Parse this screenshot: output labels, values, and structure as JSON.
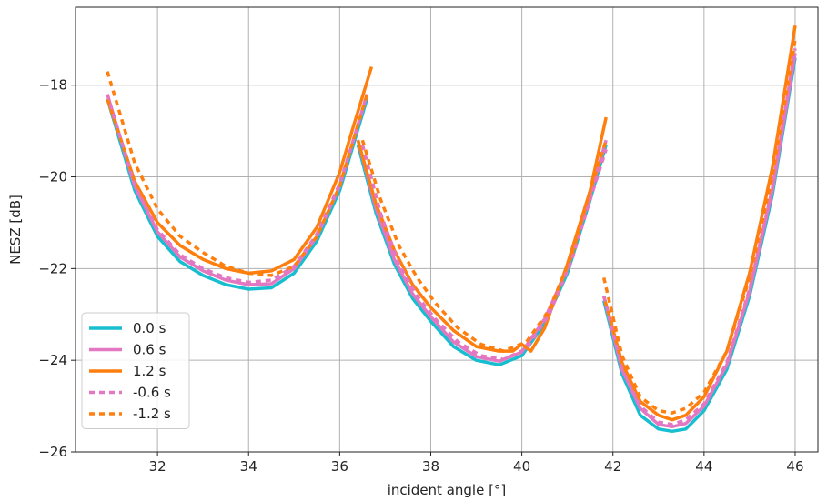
{
  "chart_data": {
    "type": "line",
    "title": "",
    "xlabel": "incident angle [°]",
    "ylabel": "NESZ [dB]",
    "xlim": [
      30.2,
      46.5
    ],
    "ylim": [
      -26.0,
      -16.3
    ],
    "xticks": [
      32,
      34,
      36,
      38,
      40,
      42,
      44,
      46
    ],
    "yticks": [
      -26,
      -24,
      -22,
      -20,
      -18
    ],
    "x_tick_labels": [
      "32",
      "34",
      "36",
      "38",
      "40",
      "42",
      "44",
      "46"
    ],
    "y_tick_labels": [
      "−26",
      "−24",
      "−22",
      "−20",
      "−18"
    ],
    "grid": true,
    "legend_position": "lower-left",
    "series": [
      {
        "name": "0.0 s",
        "color": "#17becf",
        "style": "solid",
        "segments": [
          {
            "x": [
              30.9,
              31.5,
              32.0,
              32.5,
              33.0,
              33.5,
              34.0,
              34.5,
              35.0,
              35.5,
              36.0,
              36.3,
              36.6
            ],
            "y": [
              -18.3,
              -20.3,
              -21.3,
              -21.85,
              -22.15,
              -22.35,
              -22.45,
              -22.42,
              -22.1,
              -21.4,
              -20.3,
              -19.3,
              -18.3
            ]
          },
          {
            "x": [
              36.4,
              36.8,
              37.2,
              37.6,
              38.0,
              38.5,
              39.0,
              39.5,
              40.0,
              40.5,
              41.0,
              41.5,
              41.85
            ],
            "y": [
              -19.3,
              -20.8,
              -21.9,
              -22.65,
              -23.15,
              -23.7,
              -24.0,
              -24.1,
              -23.9,
              -23.2,
              -22.1,
              -20.5,
              -19.3
            ]
          },
          {
            "x": [
              41.8,
              42.2,
              42.6,
              43.0,
              43.3,
              43.6,
              44.0,
              44.5,
              45.0,
              45.5,
              46.0
            ],
            "y": [
              -22.7,
              -24.3,
              -25.2,
              -25.5,
              -25.55,
              -25.5,
              -25.1,
              -24.2,
              -22.6,
              -20.4,
              -17.4
            ]
          }
        ]
      },
      {
        "name": "0.6 s",
        "color": "#e377c2",
        "style": "solid",
        "segments": [
          {
            "x": [
              30.9,
              31.5,
              32.0,
              32.5,
              33.0,
              33.5,
              34.0,
              34.5,
              35.0,
              35.5,
              36.0,
              36.3,
              36.6
            ],
            "y": [
              -18.2,
              -20.2,
              -21.2,
              -21.75,
              -22.05,
              -22.25,
              -22.35,
              -22.33,
              -22.0,
              -21.3,
              -20.2,
              -19.2,
              -18.2
            ]
          },
          {
            "x": [
              36.4,
              36.8,
              37.2,
              37.6,
              38.0,
              38.5,
              39.0,
              39.5,
              40.0,
              40.5,
              41.0,
              41.5,
              41.85
            ],
            "y": [
              -19.2,
              -20.7,
              -21.8,
              -22.55,
              -23.05,
              -23.6,
              -23.92,
              -24.02,
              -23.82,
              -23.1,
              -22.0,
              -20.4,
              -19.2
            ]
          },
          {
            "x": [
              41.8,
              42.2,
              42.6,
              43.0,
              43.3,
              43.6,
              44.0,
              44.5,
              45.0,
              45.5,
              46.0
            ],
            "y": [
              -22.6,
              -24.2,
              -25.05,
              -25.4,
              -25.45,
              -25.38,
              -25.0,
              -24.1,
              -22.5,
              -20.3,
              -17.3
            ]
          }
        ]
      },
      {
        "name": "1.2 s",
        "color": "#ff7f0e",
        "style": "solid",
        "segments": [
          {
            "x": [
              30.9,
              31.5,
              32.0,
              32.5,
              33.0,
              33.5,
              34.0,
              34.5,
              35.0,
              35.5,
              36.0,
              36.3,
              36.7
            ],
            "y": [
              -18.3,
              -20.1,
              -21.0,
              -21.5,
              -21.8,
              -22.0,
              -22.1,
              -22.05,
              -21.8,
              -21.1,
              -19.9,
              -18.9,
              -17.6
            ]
          },
          {
            "x": [
              36.4,
              36.8,
              37.2,
              37.6,
              38.0,
              38.5,
              39.0,
              39.5,
              39.8,
              40.0,
              40.2,
              40.5,
              41.0,
              41.5,
              41.85
            ],
            "y": [
              -19.2,
              -20.6,
              -21.6,
              -22.35,
              -22.85,
              -23.35,
              -23.7,
              -23.8,
              -23.8,
              -23.65,
              -23.8,
              -23.3,
              -21.9,
              -20.3,
              -18.7
            ]
          },
          {
            "x": [
              41.8,
              42.2,
              42.6,
              43.0,
              43.3,
              43.6,
              44.0,
              44.5,
              45.0,
              45.5,
              46.0
            ],
            "y": [
              -22.6,
              -24.05,
              -24.9,
              -25.2,
              -25.3,
              -25.2,
              -24.8,
              -23.8,
              -22.1,
              -19.8,
              -16.7
            ]
          }
        ]
      },
      {
        "name": "-0.6 s",
        "color": "#e377c2",
        "style": "dashed",
        "segments": [
          {
            "x": [
              30.9,
              31.5,
              32.0,
              32.5,
              33.0,
              33.5,
              34.0,
              34.5,
              35.0,
              35.5,
              36.0,
              36.3,
              36.6
            ],
            "y": [
              -18.2,
              -20.2,
              -21.15,
              -21.7,
              -22.0,
              -22.2,
              -22.3,
              -22.25,
              -21.95,
              -21.25,
              -20.15,
              -19.2,
              -18.2
            ]
          },
          {
            "x": [
              36.5,
              36.9,
              37.3,
              37.7,
              38.1,
              38.6,
              39.1,
              39.6,
              40.1,
              40.6,
              41.1,
              41.5,
              41.85
            ],
            "y": [
              -19.3,
              -20.8,
              -21.9,
              -22.6,
              -23.1,
              -23.6,
              -23.9,
              -23.98,
              -23.75,
              -23.0,
              -21.8,
              -20.5,
              -19.4
            ]
          },
          {
            "x": [
              41.8,
              42.2,
              42.6,
              43.0,
              43.3,
              43.6,
              44.0,
              44.5,
              45.0,
              45.5,
              46.0
            ],
            "y": [
              -22.6,
              -24.2,
              -25.0,
              -25.35,
              -25.4,
              -25.3,
              -24.95,
              -24.05,
              -22.45,
              -20.25,
              -17.2
            ]
          }
        ]
      },
      {
        "name": "-1.2 s",
        "color": "#ff7f0e",
        "style": "dashed",
        "segments": [
          {
            "x": [
              30.9,
              31.5,
              32.0,
              32.5,
              33.0,
              33.5,
              34.0,
              34.5,
              35.0,
              35.5,
              36.0,
              36.3,
              36.6
            ],
            "y": [
              -17.7,
              -19.7,
              -20.7,
              -21.3,
              -21.65,
              -21.95,
              -22.1,
              -22.15,
              -21.95,
              -21.3,
              -20.2,
              -19.2,
              -18.2
            ]
          },
          {
            "x": [
              36.5,
              36.9,
              37.3,
              37.7,
              38.1,
              38.6,
              39.1,
              39.6,
              40.1,
              40.6,
              41.1,
              41.5,
              41.85
            ],
            "y": [
              -19.2,
              -20.5,
              -21.5,
              -22.2,
              -22.75,
              -23.3,
              -23.65,
              -23.8,
              -23.6,
              -22.9,
              -21.7,
              -20.3,
              -19.2
            ]
          },
          {
            "x": [
              41.8,
              42.2,
              42.6,
              43.0,
              43.3,
              43.6,
              44.0,
              44.5,
              45.0,
              45.5,
              46.0
            ],
            "y": [
              -22.2,
              -23.9,
              -24.8,
              -25.1,
              -25.15,
              -25.05,
              -24.7,
              -23.8,
              -22.2,
              -20.0,
              -17.0
            ]
          }
        ]
      }
    ]
  }
}
